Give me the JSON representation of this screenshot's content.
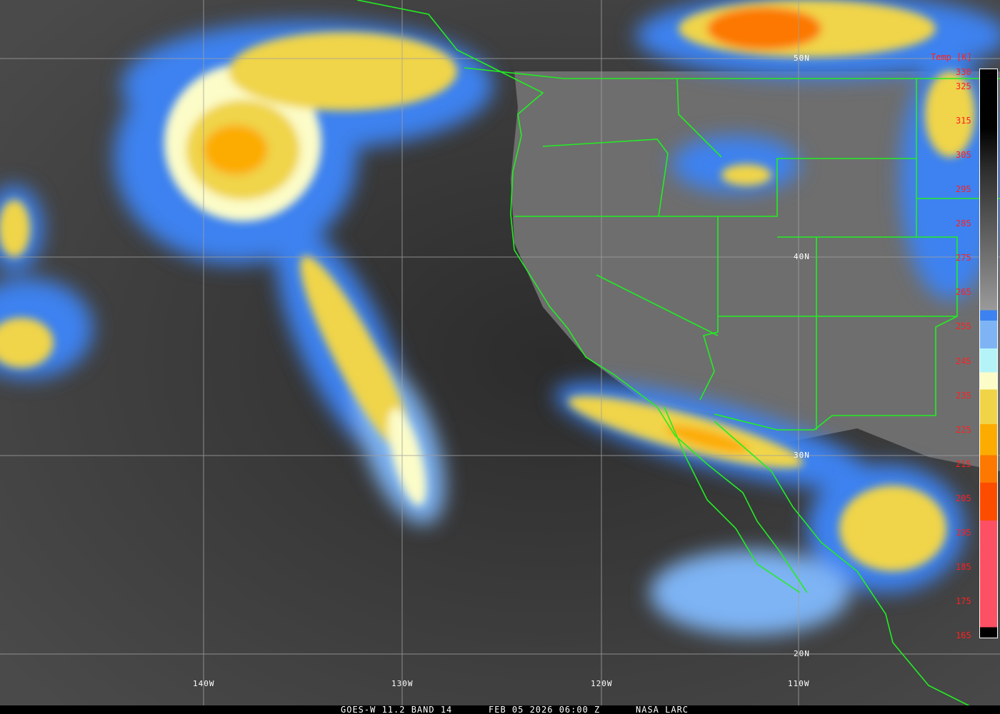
{
  "footer": {
    "satellite": "GOES-W 11.2 BAND 14",
    "datetime": "FEB 05 2026 06:00 Z",
    "credit": "NASA LARC"
  },
  "colorbar": {
    "title": "Temp [K]",
    "ticks": [
      "330",
      "325",
      "315",
      "305",
      "295",
      "285",
      "275",
      "265",
      "255",
      "245",
      "235",
      "225",
      "215",
      "205",
      "195",
      "185",
      "175",
      "165"
    ],
    "range_k": [
      165,
      330
    ],
    "colors": {
      "warm": "#000000",
      "mid_gray": "#9a9a9a",
      "blue": "#3c82f0",
      "light_blue": "#7eb4f4",
      "cyan": "#b4f4f8",
      "cream": "#fcfcc8",
      "yellow": "#f0d448",
      "orange": "#fcac00",
      "dark_orange": "#fc7800",
      "red_orange": "#fc4c00",
      "pink": "#fc5064"
    }
  },
  "grid": {
    "latitudes": [
      "50N",
      "40N",
      "30N",
      "20N"
    ],
    "longitudes": [
      "140W",
      "130W",
      "120W",
      "110W"
    ]
  },
  "boundary_color": "#22ee22"
}
